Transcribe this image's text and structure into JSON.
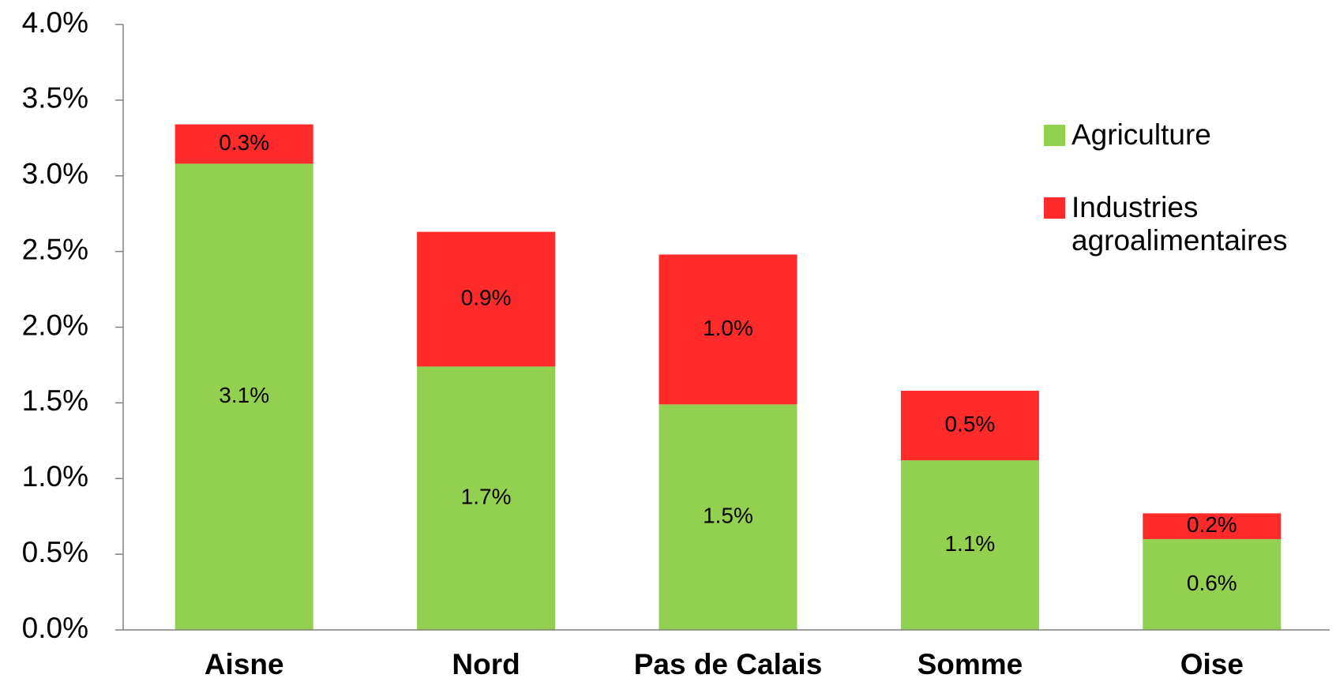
{
  "chart_data": {
    "type": "stacked_bar",
    "categories": [
      "Aisne",
      "Nord",
      "Pas de Calais",
      "Somme",
      "Oise"
    ],
    "series": [
      {
        "name": "Agriculture",
        "color": "#92d050",
        "values": [
          3.08,
          1.74,
          1.49,
          1.12,
          0.6
        ],
        "value_labels": [
          "3.1%",
          "1.7%",
          "1.5%",
          "1.1%",
          "0.6%"
        ]
      },
      {
        "name": "Industries agroalimentaires",
        "color": "#ff2a2a",
        "values": [
          0.26,
          0.89,
          0.99,
          0.46,
          0.17
        ],
        "value_labels": [
          "0.3%",
          "0.9%",
          "1.0%",
          "0.5%",
          "0.2%"
        ]
      }
    ],
    "ylim": [
      0,
      4
    ],
    "yticks": [
      {
        "value": 0,
        "label": "0.0%"
      },
      {
        "value": 0.5,
        "label": "0.5%"
      },
      {
        "value": 1,
        "label": "1.0%"
      },
      {
        "value": 1.5,
        "label": "1.5%"
      },
      {
        "value": 2,
        "label": "2.0%"
      },
      {
        "value": 2.5,
        "label": "2.5%"
      },
      {
        "value": 3,
        "label": "3.0%"
      },
      {
        "value": 3.5,
        "label": "3.5%"
      },
      {
        "value": 4,
        "label": "4.0%"
      }
    ],
    "legend": "right",
    "grid": false
  }
}
